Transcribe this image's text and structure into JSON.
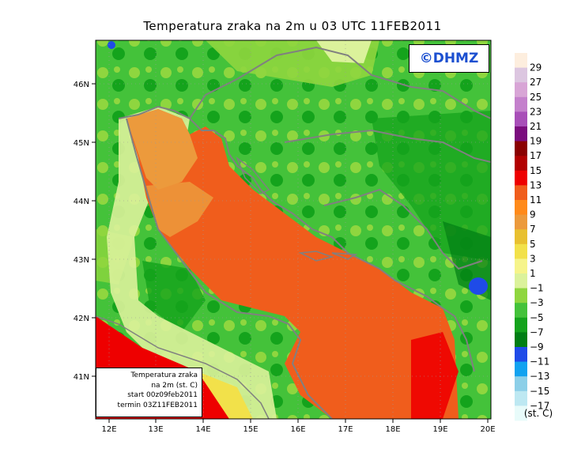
{
  "title": "Temperatura zraka na 2m u 03 UTC 11FEB2011",
  "copyright": "©DHMZ",
  "infobox": {
    "line1": "Temperatura zraka",
    "line2": "na 2m (st. C)",
    "line3": "start 00z09feb2011",
    "line4": "termin 03Z11FEB2011"
  },
  "axes": {
    "lon_labels": [
      "12E",
      "13E",
      "14E",
      "15E",
      "16E",
      "17E",
      "18E",
      "19E",
      "20E"
    ],
    "lat_labels": [
      "46N",
      "45N",
      "44N",
      "43N",
      "42N",
      "41N"
    ]
  },
  "colorbar": {
    "unit": "(st. C)",
    "labels": [
      "29",
      "27",
      "25",
      "23",
      "21",
      "19",
      "17",
      "15",
      "13",
      "11",
      "9",
      "7",
      "5",
      "3",
      "1",
      "−1",
      "−3",
      "−5",
      "−7",
      "−9",
      "−11",
      "−13",
      "−15",
      "−17"
    ],
    "colors": [
      "#fdeede",
      "#dcc6e0",
      "#d8a5d6",
      "#c480cc",
      "#a84fb8",
      "#7b0d7e",
      "#8a0000",
      "#b20000",
      "#ee0000",
      "#f05d1c",
      "#ff8a1a",
      "#ec9a3c",
      "#e8c030",
      "#f2e14a",
      "#f6f48a",
      "#dbf29b",
      "#8fd63f",
      "#44c23a",
      "#14a31c",
      "#007e14",
      "#1f4be8",
      "#11a2f0",
      "#8ccfe8",
      "#bde8f2",
      "#e8fbfa"
    ]
  },
  "colors": {
    "sea": "#f05d1c",
    "coastal_sea": "#ec9a3c",
    "land_dark": "#14a31c",
    "land_mid": "#44c23a",
    "land_light": "#8fd63f",
    "warm_south": "#ee0000",
    "border_line": "#808080"
  }
}
